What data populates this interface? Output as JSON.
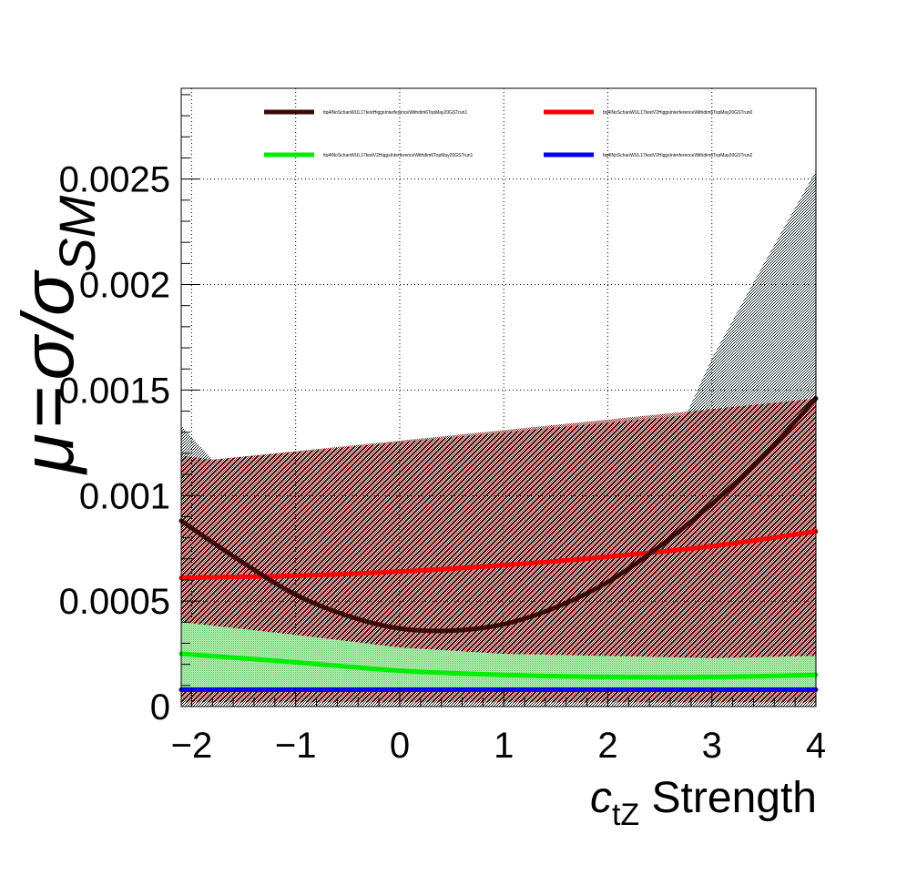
{
  "chart_data": {
    "type": "line",
    "xlabel_var": "c",
    "xlabel_sub": "tZ",
    "xlabel_rest": " Strength",
    "ylabel_mu": "μ",
    "ylabel_eq": "=",
    "ylabel_ratio": "σ/σ",
    "ylabel_sub": "SM",
    "xlim": [
      -2.1,
      4
    ],
    "ylim": [
      0,
      0.00293
    ],
    "x_ticks": [
      -2,
      -1,
      0,
      1,
      2,
      3,
      4
    ],
    "x_tick_labels": [
      "−2",
      "−1",
      "0",
      "1",
      "2",
      "3",
      "4"
    ],
    "y_ticks": [
      0,
      0.0005,
      0.001,
      0.0015,
      0.002,
      0.0025
    ],
    "y_tick_labels": [
      "0",
      "0.0005",
      "0.001",
      "0.0015",
      "0.002",
      "0.0025"
    ],
    "grid": true,
    "legend_position": "top",
    "series": [
      {
        "name": "ttq4lNoSchanWUL17testHiggsInterferenceWithdim6TopMay20GSTrun1",
        "color": "#3a0a0a",
        "band_color": "#0a1a1a",
        "x": [
          -2.1,
          -1.5,
          -1.0,
          -0.5,
          0.0,
          0.5,
          1.0,
          1.5,
          2.0,
          2.5,
          3.0,
          3.5,
          4.0
        ],
        "y": [
          0.00088,
          0.00068,
          0.00053,
          0.00043,
          0.00037,
          0.00036,
          0.00039,
          0.00047,
          0.00059,
          0.00076,
          0.00096,
          0.00119,
          0.00146
        ],
        "band_upper_x": [
          -2.1,
          -1.8,
          2.75,
          3.0,
          3.5,
          4.0
        ],
        "band_upper_y": [
          0.00133,
          0.00117,
          0.00138,
          0.00165,
          0.0021,
          0.00254
        ],
        "band_lower_x": [
          -2.1,
          4.0
        ],
        "band_lower_y": [
          0.0,
          0.0
        ]
      },
      {
        "name": "ttq4lNoSchanWUL17testV2HiggsInterferenceWithdim6TopMay20GSTrun0",
        "color": "#ff0000",
        "band_color": "#9a1818",
        "x": [
          -2.1,
          -1.0,
          0.0,
          1.0,
          2.0,
          3.0,
          4.0
        ],
        "y": [
          0.00061,
          0.00062,
          0.00064,
          0.00067,
          0.00071,
          0.00076,
          0.00083
        ],
        "band_upper_x": [
          -2.1,
          -1.8,
          4.0
        ],
        "band_upper_y": [
          0.00119,
          0.00117,
          0.00146
        ],
        "band_lower_x": [
          -2.1,
          4.0
        ],
        "band_lower_y": [
          2e-05,
          2e-05
        ]
      },
      {
        "name": "ttq4lNoSchanWUL17testV2HiggsInterferenceWithdim6TopMay20GSTrun1",
        "color": "#00ee00",
        "band_color": "#7ddd7d",
        "x": [
          -2.1,
          -1.0,
          0.0,
          1.0,
          2.0,
          3.0,
          4.0
        ],
        "y": [
          0.00025,
          0.00021,
          0.00017,
          0.00015,
          0.00014,
          0.00014,
          0.00015
        ],
        "band_upper_x": [
          -2.1,
          -1.0,
          0.0,
          1.0,
          2.0,
          3.0,
          4.0
        ],
        "band_upper_y": [
          0.0004,
          0.00034,
          0.00028,
          0.00025,
          0.00024,
          0.00023,
          0.00024
        ],
        "band_lower_x": [
          -2.1,
          4.0
        ],
        "band_lower_y": [
          8e-05,
          8e-05
        ]
      },
      {
        "name": "ttq4lNoSchanWUL17testV2HiggsInterferenceWithdim6TopMay20GSTrun2",
        "color": "#0000ee",
        "band_color": "#0000ee",
        "x": [
          -2.1,
          4.0
        ],
        "y": [
          8e-05,
          8e-05
        ],
        "band_upper_x": [
          -2.1,
          4.0
        ],
        "band_upper_y": [
          9e-05,
          9e-05
        ],
        "band_lower_x": [
          -2.1,
          4.0
        ],
        "band_lower_y": [
          7e-05,
          7e-05
        ]
      }
    ]
  }
}
